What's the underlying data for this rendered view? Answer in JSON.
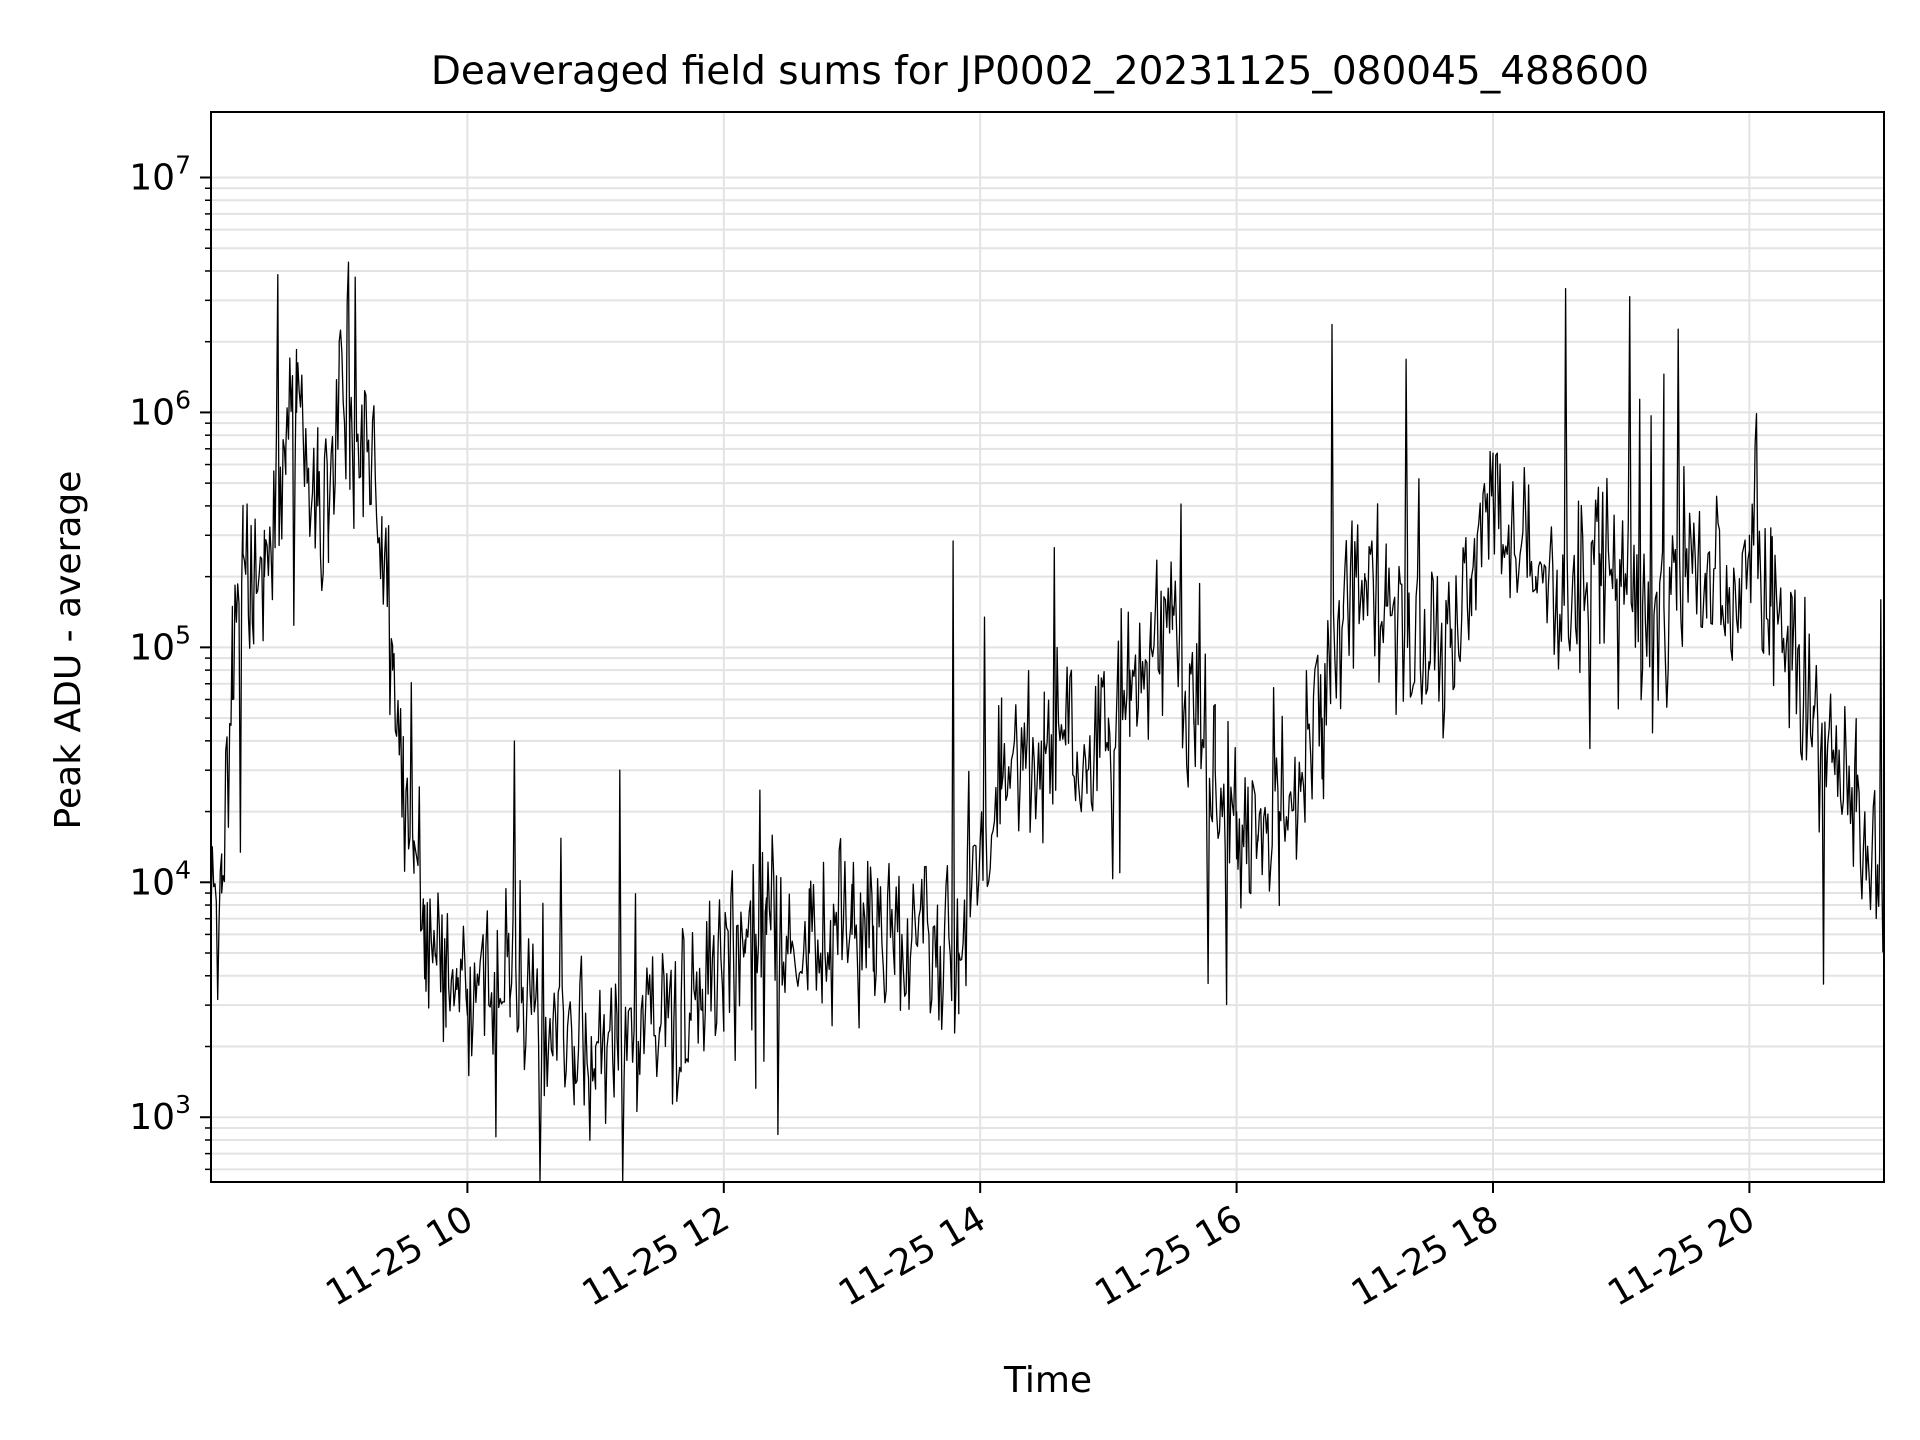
{
  "chart_data": {
    "type": "line",
    "title": "Deaveraged field sums for JP0002_20231125_080045_488600",
    "xlabel": "Time",
    "ylabel": "Peak ADU - average",
    "yscale": "log",
    "ylim": [
      530,
      19000000
    ],
    "xlim": [
      "2023-11-25 08:00",
      "2023-11-25 21:03"
    ],
    "grid": true,
    "legend": "none",
    "line_color": "#000000",
    "x_ticks": [
      "11-25 10",
      "11-25 12",
      "11-25 14",
      "11-25 16",
      "11-25 18",
      "11-25 20"
    ],
    "y_ticks": [
      {
        "base": "10",
        "exp": "3"
      },
      {
        "base": "10",
        "exp": "4"
      },
      {
        "base": "10",
        "exp": "5"
      },
      {
        "base": "10",
        "exp": "6"
      },
      {
        "base": "10",
        "exp": "7"
      }
    ],
    "series": [
      {
        "x": [
          "2023-11-25 08:00",
          "2023-11-25 08:05",
          "2023-11-25 08:10",
          "2023-11-25 08:15",
          "2023-11-25 08:20",
          "2023-11-25 08:25",
          "2023-11-25 08:30",
          "2023-11-25 08:35",
          "2023-11-25 08:40",
          "2023-11-25 08:45",
          "2023-11-25 08:50",
          "2023-11-25 08:55",
          "2023-11-25 09:00",
          "2023-11-25 09:05",
          "2023-11-25 09:10",
          "2023-11-25 09:15",
          "2023-11-25 09:20",
          "2023-11-25 09:25",
          "2023-11-25 09:30",
          "2023-11-25 09:35",
          "2023-11-25 09:40",
          "2023-11-25 09:45",
          "2023-11-25 09:50",
          "2023-11-25 09:55",
          "2023-11-25 10:00",
          "2023-11-25 10:10",
          "2023-11-25 10:20",
          "2023-11-25 10:30",
          "2023-11-25 10:40",
          "2023-11-25 10:45",
          "2023-11-25 10:50",
          "2023-11-25 11:00",
          "2023-11-25 11:10",
          "2023-11-25 11:20",
          "2023-11-25 11:30",
          "2023-11-25 11:40",
          "2023-11-25 11:50",
          "2023-11-25 12:00",
          "2023-11-25 12:10",
          "2023-11-25 12:15",
          "2023-11-25 12:20",
          "2023-11-25 12:30",
          "2023-11-25 12:40",
          "2023-11-25 12:50",
          "2023-11-25 13:00",
          "2023-11-25 13:10",
          "2023-11-25 13:20",
          "2023-11-25 13:30",
          "2023-11-25 13:40",
          "2023-11-25 13:50",
          "2023-11-25 14:00",
          "2023-11-25 14:10",
          "2023-11-25 14:20",
          "2023-11-25 14:30",
          "2023-11-25 14:40",
          "2023-11-25 14:50",
          "2023-11-25 15:00",
          "2023-11-25 15:10",
          "2023-11-25 15:20",
          "2023-11-25 15:30",
          "2023-11-25 15:40",
          "2023-11-25 15:50",
          "2023-11-25 16:00",
          "2023-11-25 16:10",
          "2023-11-25 16:20",
          "2023-11-25 16:30",
          "2023-11-25 16:40",
          "2023-11-25 16:50",
          "2023-11-25 17:00",
          "2023-11-25 17:10",
          "2023-11-25 17:20",
          "2023-11-25 17:30",
          "2023-11-25 17:40",
          "2023-11-25 17:50",
          "2023-11-25 18:00",
          "2023-11-25 18:10",
          "2023-11-25 18:20",
          "2023-11-25 18:30",
          "2023-11-25 18:40",
          "2023-11-25 18:50",
          "2023-11-25 19:00",
          "2023-11-25 19:10",
          "2023-11-25 19:20",
          "2023-11-25 19:30",
          "2023-11-25 19:40",
          "2023-11-25 19:50",
          "2023-11-25 20:00",
          "2023-11-25 20:10",
          "2023-11-25 20:20",
          "2023-11-25 20:30",
          "2023-11-25 20:40",
          "2023-11-25 20:50",
          "2023-11-25 21:00",
          "2023-11-25 21:03"
        ],
        "y": [
          7000,
          9000,
          60000,
          250000,
          150000,
          200000,
          300000,
          700000,
          1000000,
          500000,
          400000,
          300000,
          2000000,
          900000,
          700000,
          500000,
          300000,
          80000,
          30000,
          15000,
          8000,
          5000,
          4000,
          3500,
          3500,
          3000,
          3200,
          3000,
          2500,
          2200,
          2000,
          2000,
          2200,
          2100,
          2300,
          3000,
          3500,
          4000,
          5000,
          6000,
          6000,
          5000,
          5000,
          5500,
          6000,
          6500,
          6000,
          5500,
          5000,
          5000,
          15000,
          25000,
          30000,
          40000,
          50000,
          30000,
          50000,
          80000,
          100000,
          150000,
          50000,
          30000,
          20000,
          15000,
          20000,
          25000,
          50000,
          150000,
          200000,
          150000,
          100000,
          80000,
          100000,
          200000,
          500000,
          250000,
          200000,
          150000,
          200000,
          250000,
          200000,
          150000,
          150000,
          200000,
          200000,
          150000,
          300000,
          150000,
          80000,
          50000,
          30000,
          20000,
          10000,
          6000
        ]
      }
    ]
  }
}
